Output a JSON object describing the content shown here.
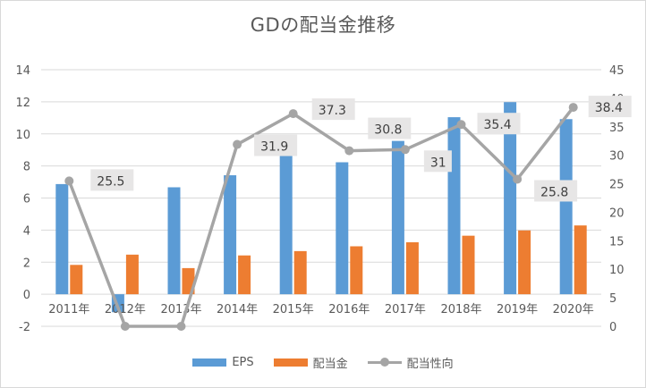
{
  "chart_data": {
    "type": "bar",
    "title": "GDの配当金推移",
    "categories": [
      "2011年",
      "2012年",
      "2013年",
      "2014年",
      "2015年",
      "2016年",
      "2017年",
      "2018年",
      "2019年",
      "2020年"
    ],
    "series": [
      {
        "name": "EPS",
        "type": "bar",
        "axis": "left",
        "color": "#5b9bd5",
        "values": [
          6.87,
          -1.12,
          6.67,
          7.42,
          9.08,
          8.23,
          9.56,
          11.04,
          11.98,
          10.92
        ]
      },
      {
        "name": "配当金",
        "type": "bar",
        "axis": "left",
        "color": "#ed7d31",
        "values": [
          1.83,
          2.47,
          1.63,
          2.42,
          2.69,
          2.99,
          3.24,
          3.65,
          3.98,
          4.29
        ]
      },
      {
        "name": "配当性向",
        "type": "line",
        "axis": "right",
        "color": "#a5a5a5",
        "values": [
          25.5,
          0,
          0,
          31.9,
          37.3,
          30.8,
          31,
          35.4,
          25.8,
          38.4
        ],
        "labels": [
          "25.5",
          "",
          "",
          "31.9",
          "37.3",
          "30.8",
          "31",
          "35.4",
          "25.8",
          "38.4"
        ]
      }
    ],
    "left_axis": {
      "min": -2,
      "max": 14,
      "step": 2,
      "ticks": [
        "-2",
        "0",
        "2",
        "4",
        "6",
        "8",
        "10",
        "12",
        "14"
      ]
    },
    "right_axis": {
      "min": 0,
      "max": 45,
      "step": 5,
      "ticks": [
        "0",
        "5",
        "10",
        "15",
        "20",
        "25",
        "30",
        "35",
        "40",
        "45"
      ]
    },
    "grid": true,
    "legend_position": "bottom"
  }
}
